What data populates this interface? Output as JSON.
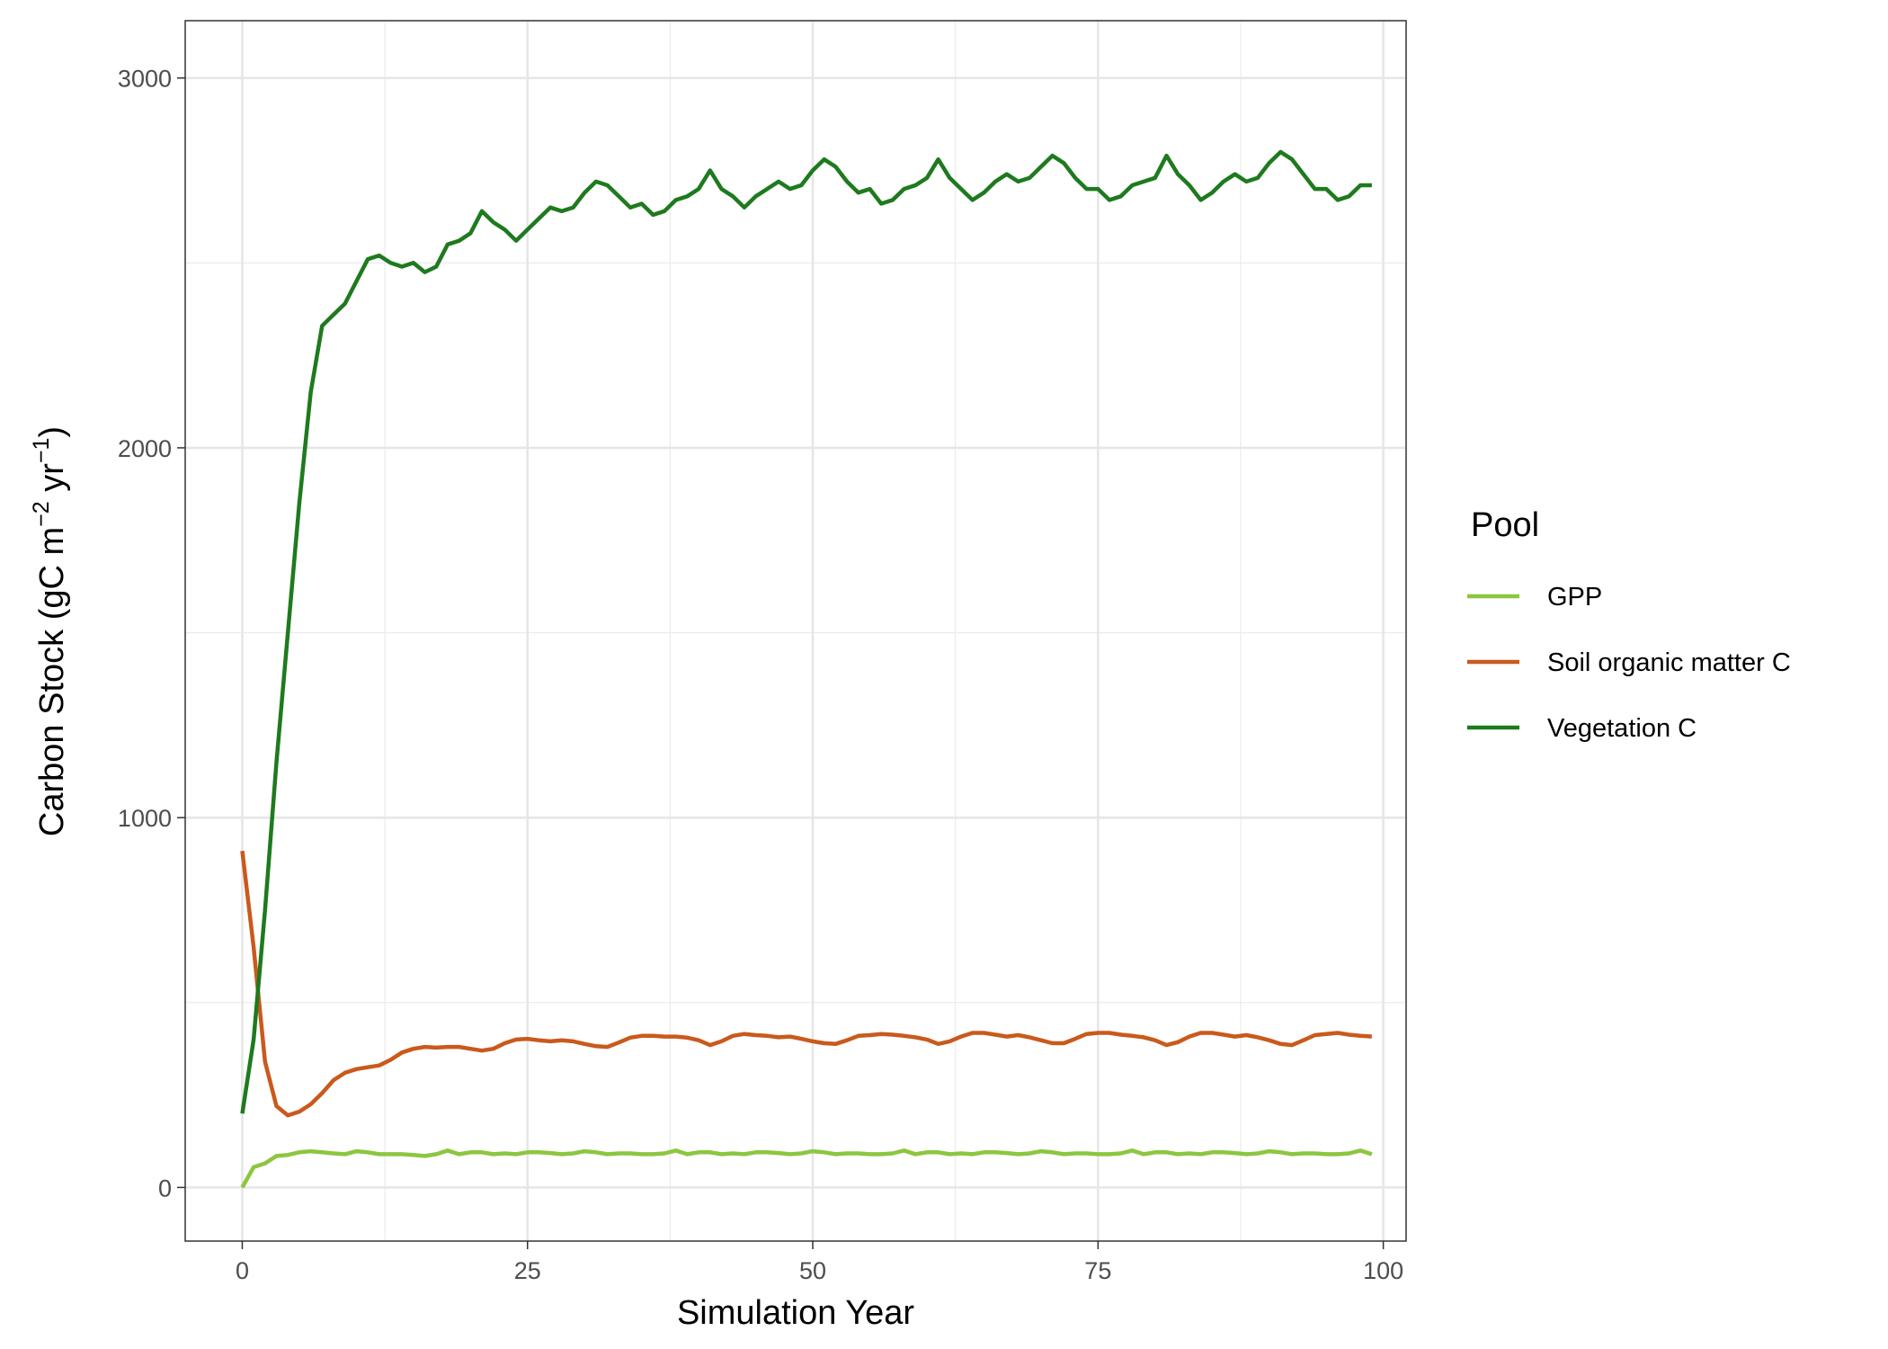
{
  "chart_data": {
    "type": "line",
    "xlabel": "Simulation Year",
    "ylabel": {
      "prefix": "Carbon Stock (gC m",
      "sup1": "−2",
      "mid": " yr",
      "sup2": "−1",
      "suffix": ")"
    },
    "xlim": [
      -5,
      102
    ],
    "ylim": [
      -145,
      3155
    ],
    "xticks": [
      0,
      25,
      50,
      75,
      100
    ],
    "xtick_labels": [
      "0",
      "25",
      "50",
      "75",
      "100"
    ],
    "yticks": [
      0,
      1000,
      2000,
      3000
    ],
    "ytick_labels": [
      "0",
      "1000",
      "2000",
      "3000"
    ],
    "grid": true,
    "legend": {
      "title": "Pool",
      "position": "right"
    },
    "series": [
      {
        "name": "GPP",
        "color": "#8cc63f",
        "x": [
          0,
          1,
          2,
          3,
          4,
          5,
          6,
          7,
          8,
          9,
          10,
          11,
          12,
          13,
          14,
          15,
          16,
          17,
          18,
          19,
          20,
          21,
          22,
          23,
          24,
          25,
          26,
          27,
          28,
          29,
          30,
          31,
          32,
          33,
          34,
          35,
          36,
          37,
          38,
          39,
          40,
          41,
          42,
          43,
          44,
          45,
          46,
          47,
          48,
          49,
          50,
          51,
          52,
          53,
          54,
          55,
          56,
          57,
          58,
          59,
          60,
          61,
          62,
          63,
          64,
          65,
          66,
          67,
          68,
          69,
          70,
          71,
          72,
          73,
          74,
          75,
          76,
          77,
          78,
          79,
          80,
          81,
          82,
          83,
          84,
          85,
          86,
          87,
          88,
          89,
          90,
          91,
          92,
          93,
          94,
          95,
          96,
          97,
          98,
          99
        ],
        "values": [
          0,
          55,
          65,
          85,
          88,
          95,
          98,
          95,
          92,
          90,
          98,
          95,
          90,
          90,
          90,
          88,
          85,
          90,
          100,
          90,
          95,
          95,
          90,
          92,
          90,
          95,
          95,
          93,
          90,
          92,
          98,
          95,
          90,
          92,
          92,
          90,
          90,
          92,
          100,
          90,
          95,
          95,
          90,
          92,
          90,
          95,
          95,
          93,
          90,
          92,
          98,
          95,
          90,
          92,
          92,
          90,
          90,
          92,
          100,
          90,
          95,
          95,
          90,
          92,
          90,
          95,
          95,
          93,
          90,
          92,
          98,
          95,
          90,
          92,
          92,
          90,
          90,
          92,
          100,
          90,
          95,
          95,
          90,
          92,
          90,
          95,
          95,
          93,
          90,
          92,
          98,
          95,
          90,
          92,
          92,
          90,
          90,
          92,
          100,
          90
        ]
      },
      {
        "name": "Soil organic matter C",
        "color": "#c95a1c",
        "x": [
          0,
          1,
          2,
          3,
          4,
          5,
          6,
          7,
          8,
          9,
          10,
          11,
          12,
          13,
          14,
          15,
          16,
          17,
          18,
          19,
          20,
          21,
          22,
          23,
          24,
          25,
          26,
          27,
          28,
          29,
          30,
          31,
          32,
          33,
          34,
          35,
          36,
          37,
          38,
          39,
          40,
          41,
          42,
          43,
          44,
          45,
          46,
          47,
          48,
          49,
          50,
          51,
          52,
          53,
          54,
          55,
          56,
          57,
          58,
          59,
          60,
          61,
          62,
          63,
          64,
          65,
          66,
          67,
          68,
          69,
          70,
          71,
          72,
          73,
          74,
          75,
          76,
          77,
          78,
          79,
          80,
          81,
          82,
          83,
          84,
          85,
          86,
          87,
          88,
          89,
          90,
          91,
          92,
          93,
          94,
          95,
          96,
          97,
          98,
          99
        ],
        "values": [
          910,
          650,
          340,
          220,
          195,
          205,
          225,
          255,
          290,
          310,
          320,
          325,
          330,
          345,
          365,
          375,
          380,
          378,
          380,
          380,
          375,
          370,
          375,
          390,
          400,
          402,
          398,
          395,
          398,
          395,
          388,
          382,
          380,
          392,
          405,
          410,
          410,
          408,
          408,
          405,
          398,
          385,
          395,
          410,
          415,
          412,
          410,
          406,
          408,
          402,
          395,
          390,
          388,
          398,
          410,
          412,
          415,
          413,
          410,
          406,
          400,
          388,
          395,
          408,
          418,
          418,
          413,
          408,
          412,
          406,
          398,
          390,
          390,
          402,
          415,
          418,
          418,
          413,
          410,
          406,
          398,
          385,
          393,
          408,
          418,
          418,
          413,
          408,
          412,
          406,
          398,
          388,
          385,
          398,
          412,
          415,
          418,
          413,
          410,
          408
        ]
      },
      {
        "name": "Vegetation C",
        "color": "#1e7a1e",
        "x": [
          0,
          1,
          2,
          3,
          4,
          5,
          6,
          7,
          8,
          9,
          10,
          11,
          12,
          13,
          14,
          15,
          16,
          17,
          18,
          19,
          20,
          21,
          22,
          23,
          24,
          25,
          26,
          27,
          28,
          29,
          30,
          31,
          32,
          33,
          34,
          35,
          36,
          37,
          38,
          39,
          40,
          41,
          42,
          43,
          44,
          45,
          46,
          47,
          48,
          49,
          50,
          51,
          52,
          53,
          54,
          55,
          56,
          57,
          58,
          59,
          60,
          61,
          62,
          63,
          64,
          65,
          66,
          67,
          68,
          69,
          70,
          71,
          72,
          73,
          74,
          75,
          76,
          77,
          78,
          79,
          80,
          81,
          82,
          83,
          84,
          85,
          86,
          87,
          88,
          89,
          90,
          91,
          92,
          93,
          94,
          95,
          96,
          97,
          98,
          99
        ],
        "values": [
          200,
          400,
          750,
          1150,
          1500,
          1850,
          2150,
          2330,
          2360,
          2390,
          2450,
          2510,
          2520,
          2500,
          2490,
          2500,
          2475,
          2490,
          2550,
          2560,
          2580,
          2640,
          2610,
          2590,
          2560,
          2590,
          2620,
          2650,
          2640,
          2650,
          2690,
          2720,
          2710,
          2680,
          2650,
          2660,
          2630,
          2640,
          2670,
          2680,
          2700,
          2750,
          2700,
          2680,
          2650,
          2680,
          2700,
          2720,
          2700,
          2710,
          2750,
          2780,
          2760,
          2720,
          2690,
          2700,
          2660,
          2670,
          2700,
          2710,
          2730,
          2780,
          2730,
          2700,
          2670,
          2690,
          2720,
          2740,
          2720,
          2730,
          2760,
          2790,
          2770,
          2730,
          2700,
          2700,
          2670,
          2680,
          2710,
          2720,
          2730,
          2790,
          2740,
          2710,
          2670,
          2690,
          2720,
          2740,
          2720,
          2730,
          2770,
          2800,
          2780,
          2740,
          2700,
          2700,
          2670,
          2680,
          2710,
          2710
        ]
      }
    ]
  }
}
